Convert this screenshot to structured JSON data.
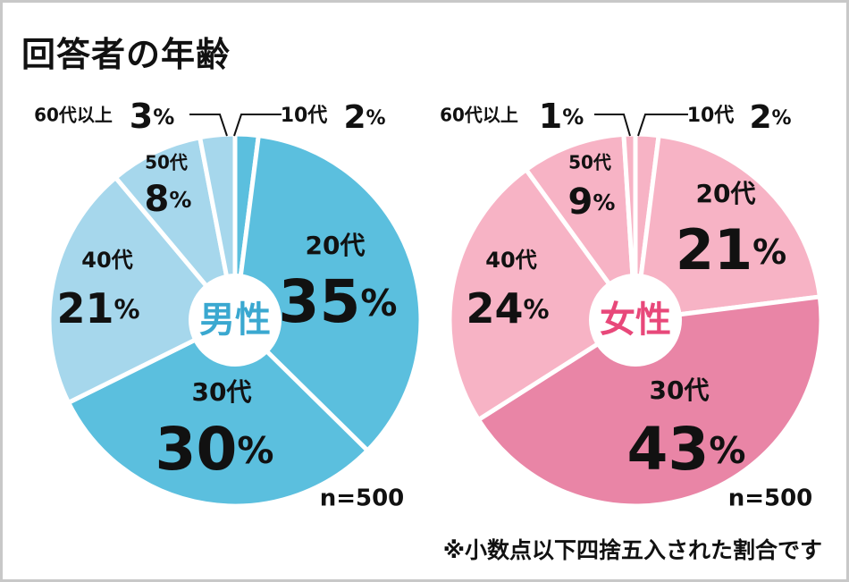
{
  "title": "回答者の年齢",
  "footnote": "※小数点以下四捨五入された割合です",
  "colors": {
    "male_center_text": "#3aa8d0",
    "female_center_text": "#e8487a"
  },
  "chart_data": [
    {
      "type": "pie",
      "center_label": "男性",
      "n_label": "n=500",
      "series": [
        {
          "label": "10代",
          "value": 2,
          "pct_text": "2%",
          "color": "#5bbfde"
        },
        {
          "label": "20代",
          "value": 35,
          "pct_text": "35%",
          "color": "#5bbfde"
        },
        {
          "label": "30代",
          "value": 30,
          "pct_text": "30%",
          "color": "#5bbfde"
        },
        {
          "label": "40代",
          "value": 21,
          "pct_text": "21%",
          "color": "#a6d7ec"
        },
        {
          "label": "50代",
          "value": 8,
          "pct_text": "8%",
          "color": "#a6d7ec"
        },
        {
          "label": "60代以上",
          "value": 3,
          "pct_text": "3%",
          "color": "#a6d7ec"
        }
      ]
    },
    {
      "type": "pie",
      "center_label": "女性",
      "n_label": "n=500",
      "series": [
        {
          "label": "10代",
          "value": 2,
          "pct_text": "2%",
          "color": "#f7b3c5"
        },
        {
          "label": "20代",
          "value": 21,
          "pct_text": "21%",
          "color": "#f7b3c5"
        },
        {
          "label": "30代",
          "value": 43,
          "pct_text": "43%",
          "color": "#e985a6"
        },
        {
          "label": "40代",
          "value": 24,
          "pct_text": "24%",
          "color": "#f7b3c5"
        },
        {
          "label": "50代",
          "value": 9,
          "pct_text": "9%",
          "color": "#f7b3c5"
        },
        {
          "label": "60代以上",
          "value": 1,
          "pct_text": "1%",
          "color": "#f7b3c5"
        }
      ]
    }
  ]
}
